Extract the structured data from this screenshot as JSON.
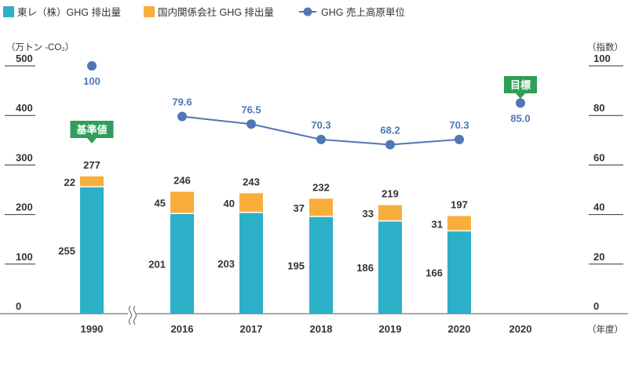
{
  "chart_data": {
    "type": "bar",
    "legend": {
      "placement": "top-left",
      "items": [
        {
          "key": "toray",
          "label": "東レ（株）GHG 排出量",
          "color": "#2bb0c7",
          "marker": "square"
        },
        {
          "key": "domestic",
          "label": "国内関係会社 GHG 排出量",
          "color": "#f9ad3b",
          "marker": "square"
        },
        {
          "key": "intensity",
          "label": "GHG 売上高原単位",
          "color": "#4f77b3",
          "marker": "line-dot"
        }
      ]
    },
    "y_left": {
      "label": "（万トン -CO₂）",
      "ticks": [
        0,
        100,
        200,
        300,
        400,
        500
      ],
      "lim": [
        0,
        500
      ]
    },
    "y_right": {
      "label": "（指数）",
      "ticks": [
        0,
        20,
        40,
        60,
        80,
        100
      ],
      "lim": [
        0,
        100
      ]
    },
    "x_label": "（年度）",
    "categories": [
      "1990",
      "2016",
      "2017",
      "2018",
      "2019",
      "2020",
      "2020"
    ],
    "axis_break_after_index": 0,
    "series": [
      {
        "key": "toray",
        "name": "東レ（株）GHG 排出量",
        "stack": true,
        "color": "#2bb0c7",
        "values": [
          255,
          201,
          203,
          195,
          186,
          166,
          null
        ]
      },
      {
        "key": "domestic",
        "name": "国内関係会社 GHG 排出量",
        "stack": true,
        "color": "#f9ad3b",
        "values": [
          22,
          45,
          40,
          37,
          33,
          31,
          null
        ]
      },
      {
        "key": "intensity",
        "name": "GHG 売上高原単位",
        "type": "line",
        "axis": "right",
        "color": "#4f77b3",
        "values": [
          100,
          79.6,
          76.5,
          70.3,
          68.2,
          70.3,
          85.0
        ],
        "labels": [
          "100",
          "79.6",
          "76.5",
          "70.3",
          "68.2",
          "70.3",
          "85.0"
        ],
        "line_connected_indices": [
          1,
          2,
          3,
          4,
          5
        ]
      }
    ],
    "totals": [
      277,
      246,
      243,
      232,
      219,
      197,
      null
    ],
    "annotations": [
      {
        "text": "基準値",
        "category_index": 0,
        "color": "#2f9e57",
        "pointer": "down"
      },
      {
        "text": "目標",
        "category_index": 6,
        "color": "#2f9e57",
        "pointer": "down"
      }
    ],
    "grid": false
  }
}
